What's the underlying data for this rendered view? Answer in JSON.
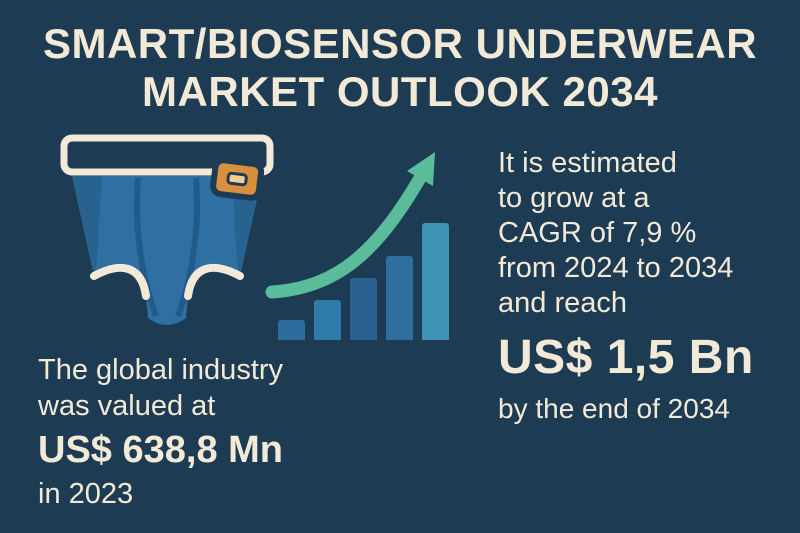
{
  "colors": {
    "background": "#1e3b54",
    "text": "#f2ead7",
    "arrow_green": "#5abc9a",
    "underwear_blue": "#2f6fa2",
    "underwear_shade": "#28628f",
    "seam_blue": "#225b88",
    "trim_cream": "#f2ead7",
    "sensor_orange": "#d8903d",
    "sensor_slot": "#f3cf96"
  },
  "title": {
    "line1": "SMART/BIOSENSOR UNDERWEAR",
    "line2": "MARKET OUTLOOK 2034"
  },
  "left_stat": {
    "lines": [
      "The global industry",
      "was valued at"
    ],
    "value": "US$ 638,8 Mn",
    "period": "in 2023"
  },
  "right_stat": {
    "lines": [
      "It is estimated",
      "to grow at a",
      "CAGR of 7,9 %",
      "from 2024 to 2034",
      "and reach"
    ],
    "value": "US$ 1,5 Bn",
    "period": "by the end of 2034"
  },
  "chart_data": {
    "type": "bar",
    "title": "Smart/Biosensor Underwear Market Outlook 2034",
    "categories": [
      "",
      "",
      "",
      "",
      ""
    ],
    "values": [
      20,
      40,
      62,
      84,
      117
    ],
    "values_note": "relative bar heights in px; decorative growth bars, no axes or tick labels shown",
    "bar_colors": [
      "#2d6d9d",
      "#2f7cab",
      "#2a6190",
      "#2e6f9f",
      "#3f94b4"
    ],
    "trend_arrow": true,
    "xlabel": "",
    "ylabel": "",
    "legend": false,
    "grid": false,
    "key_stats": {
      "market_value_2023": "US$ 638,8 Mn",
      "cagr_2024_2034": "7,9 %",
      "market_value_2034": "US$ 1,5 Bn"
    }
  }
}
